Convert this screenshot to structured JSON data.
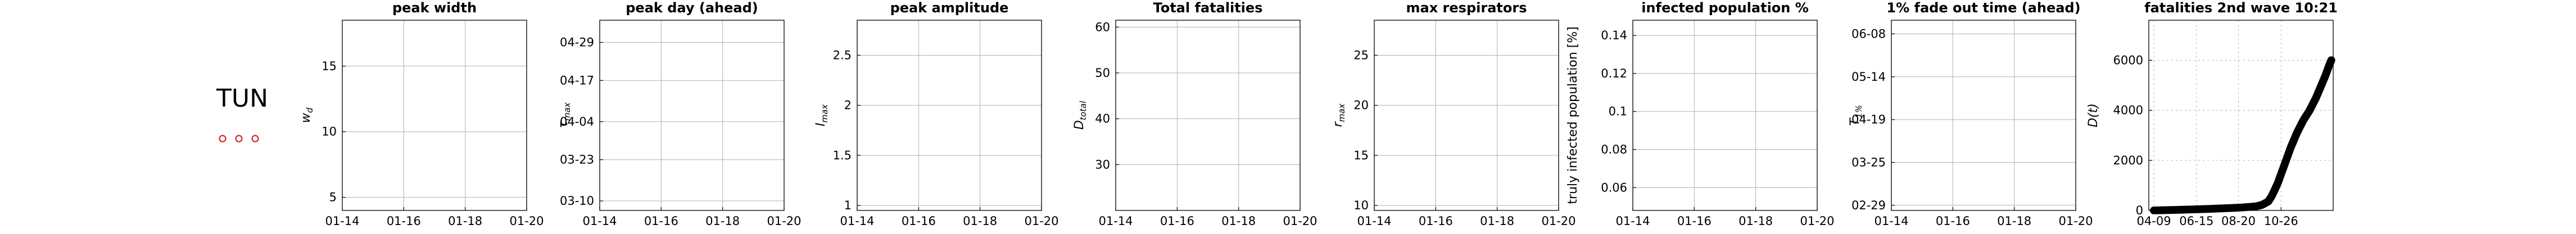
{
  "country": {
    "code": "TUN",
    "marker_color": "#d62728",
    "marker_count": 3
  },
  "colors": {
    "axis": "#000000",
    "grid": "#b0b0b0",
    "series": "#000000"
  },
  "chart_data": [
    {
      "type": "line",
      "title": "peak width",
      "ylabel": "w_d",
      "ylabel_main": "w",
      "ylabel_sub": "d",
      "x_ticks": [
        "01-14",
        "01-16",
        "01-18",
        "01-20"
      ],
      "y_ticks": [
        "5",
        "10",
        "15"
      ],
      "y_tick_values": [
        5,
        10,
        15
      ],
      "ylim": [
        4,
        18.5
      ],
      "grid": true,
      "series": []
    },
    {
      "type": "line",
      "title": "peak day (ahead)",
      "ylabel": "τ_max",
      "ylabel_main": "τ",
      "ylabel_sub": "max",
      "x_ticks": [
        "01-14",
        "01-16",
        "01-18",
        "01-20"
      ],
      "y_ticks": [
        "03-10",
        "03-23",
        "04-04",
        "04-17",
        "04-29"
      ],
      "y_tick_values": [
        0,
        13,
        25,
        38,
        50
      ],
      "ylim": [
        -3,
        57
      ],
      "grid": true,
      "series": []
    },
    {
      "type": "line",
      "title": "peak amplitude",
      "ylabel": "I_max",
      "ylabel_main": "I",
      "ylabel_sub": "max",
      "x_ticks": [
        "01-14",
        "01-16",
        "01-18",
        "01-20"
      ],
      "y_ticks": [
        "1",
        "1.5",
        "2",
        "2.5"
      ],
      "y_tick_values": [
        1,
        1.5,
        2,
        2.5
      ],
      "ylim": [
        0.95,
        2.85
      ],
      "grid": true,
      "series": []
    },
    {
      "type": "line",
      "title": "Total fatalities",
      "ylabel": "D_total",
      "ylabel_main": "D",
      "ylabel_sub": "total",
      "x_ticks": [
        "01-14",
        "01-16",
        "01-18",
        "01-20"
      ],
      "y_ticks": [
        "30",
        "40",
        "50",
        "60"
      ],
      "y_tick_values": [
        30,
        40,
        50,
        60
      ],
      "ylim": [
        20,
        61.5
      ],
      "grid": true,
      "series": []
    },
    {
      "type": "line",
      "title": "max respirators",
      "ylabel": "r_max",
      "ylabel_main": "r",
      "ylabel_sub": "max",
      "x_ticks": [
        "01-14",
        "01-16",
        "01-18",
        "01-20"
      ],
      "y_ticks": [
        "10",
        "15",
        "20",
        "25"
      ],
      "y_tick_values": [
        10,
        15,
        20,
        25
      ],
      "ylim": [
        9.5,
        28.5
      ],
      "grid": true,
      "series": []
    },
    {
      "type": "line",
      "title": "infected population %",
      "ylabel": "truly infected population [%]",
      "x_ticks": [
        "01-14",
        "01-16",
        "01-18",
        "01-20"
      ],
      "y_ticks": [
        "0.06",
        "0.08",
        "0.1",
        "0.12",
        "0.14"
      ],
      "y_tick_values": [
        0.06,
        0.08,
        0.1,
        0.12,
        0.14
      ],
      "ylim": [
        0.048,
        0.148
      ],
      "grid": true,
      "series": []
    },
    {
      "type": "line",
      "title": "1% fade out time (ahead)",
      "ylabel": "T_1%",
      "ylabel_main": "T",
      "ylabel_sub": "1%",
      "x_ticks": [
        "01-14",
        "01-16",
        "01-18",
        "01-20"
      ],
      "y_ticks": [
        "02-29",
        "03-25",
        "04-19",
        "05-14",
        "06-08"
      ],
      "y_tick_values": [
        0,
        25,
        50,
        75,
        100
      ],
      "ylim": [
        -3,
        108
      ],
      "grid": true,
      "series": []
    },
    {
      "type": "scatter",
      "title": "fatalities 2nd wave 10:21",
      "ylabel": "D(t)",
      "ylabel_main": "D(t)",
      "ylabel_sub": "",
      "x_ticks": [
        "04-09",
        "06-15",
        "08-20",
        "10-26"
      ],
      "x_tick_values": [
        0,
        67,
        133,
        200
      ],
      "xlim": [
        -8,
        282
      ],
      "y_ticks": [
        "0",
        "2000",
        "4000",
        "6000"
      ],
      "y_tick_values": [
        0,
        2000,
        4000,
        6000
      ],
      "ylim": [
        0,
        7600
      ],
      "grid": true,
      "series": [
        {
          "x": [
            0,
            20,
            40,
            60,
            80,
            100,
            120,
            140,
            160,
            170,
            180,
            185,
            190,
            195,
            200,
            205,
            210,
            215,
            220,
            225,
            230,
            235,
            240,
            245,
            250,
            255,
            260,
            265,
            270,
            275,
            279
          ],
          "y": [
            0,
            12,
            25,
            40,
            55,
            75,
            95,
            120,
            160,
            220,
            360,
            560,
            820,
            1100,
            1450,
            1800,
            2150,
            2500,
            2800,
            3100,
            3350,
            3600,
            3800,
            4000,
            4250,
            4500,
            4800,
            5100,
            5400,
            5750,
            6000
          ]
        }
      ]
    }
  ]
}
